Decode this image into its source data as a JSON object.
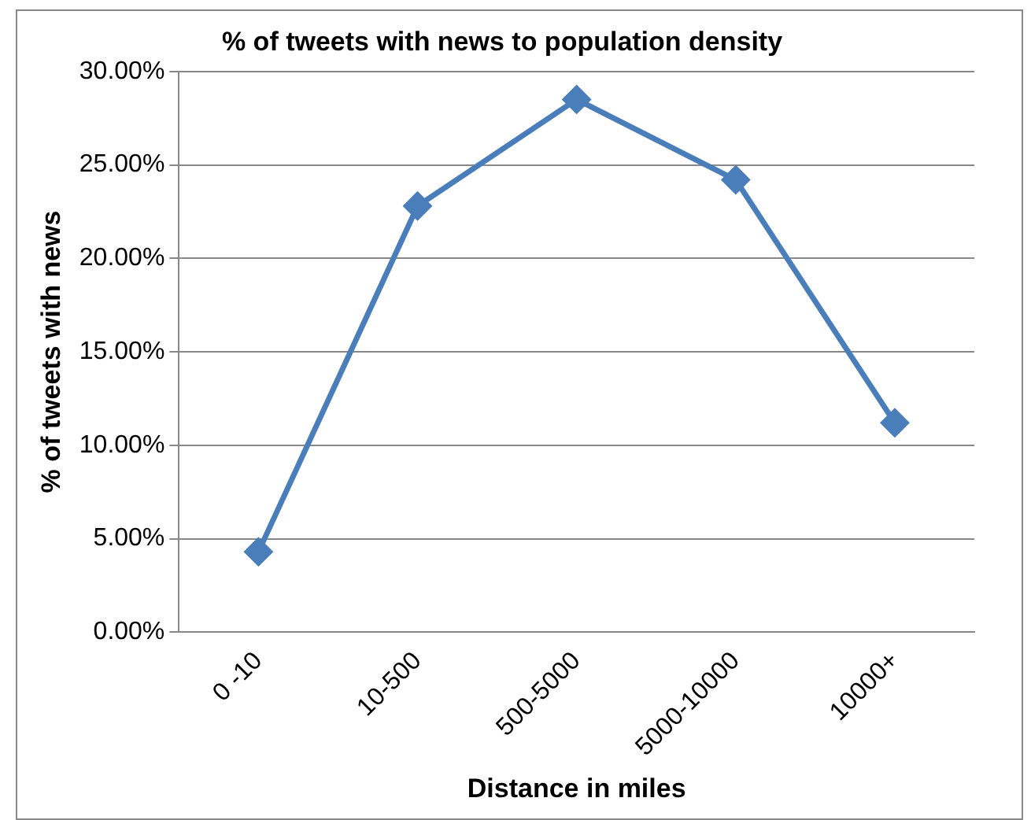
{
  "chart_data": {
    "type": "line",
    "title": "% of tweets with news to population density",
    "xlabel": "Distance in miles",
    "ylabel": "% of tweets with news",
    "categories": [
      "0 -10",
      "10-500",
      "500-5000",
      "5000-10000",
      "10000+"
    ],
    "series": [
      {
        "color": "#4a7ebb",
        "values": [
          4.3,
          22.8,
          28.5,
          24.2,
          11.2
        ]
      }
    ],
    "ylim": [
      0,
      30
    ],
    "yticks": [
      {
        "value": 0,
        "label": "0.00%"
      },
      {
        "value": 5,
        "label": "5.00%"
      },
      {
        "value": 10,
        "label": "10.00%"
      },
      {
        "value": 15,
        "label": "15.00%"
      },
      {
        "value": 20,
        "label": "20.00%"
      },
      {
        "value": 25,
        "label": "25.00%"
      },
      {
        "value": 30,
        "label": "30.00%"
      }
    ],
    "grid": "y",
    "legend": false,
    "marker": "diamond",
    "line_style": "solid"
  }
}
